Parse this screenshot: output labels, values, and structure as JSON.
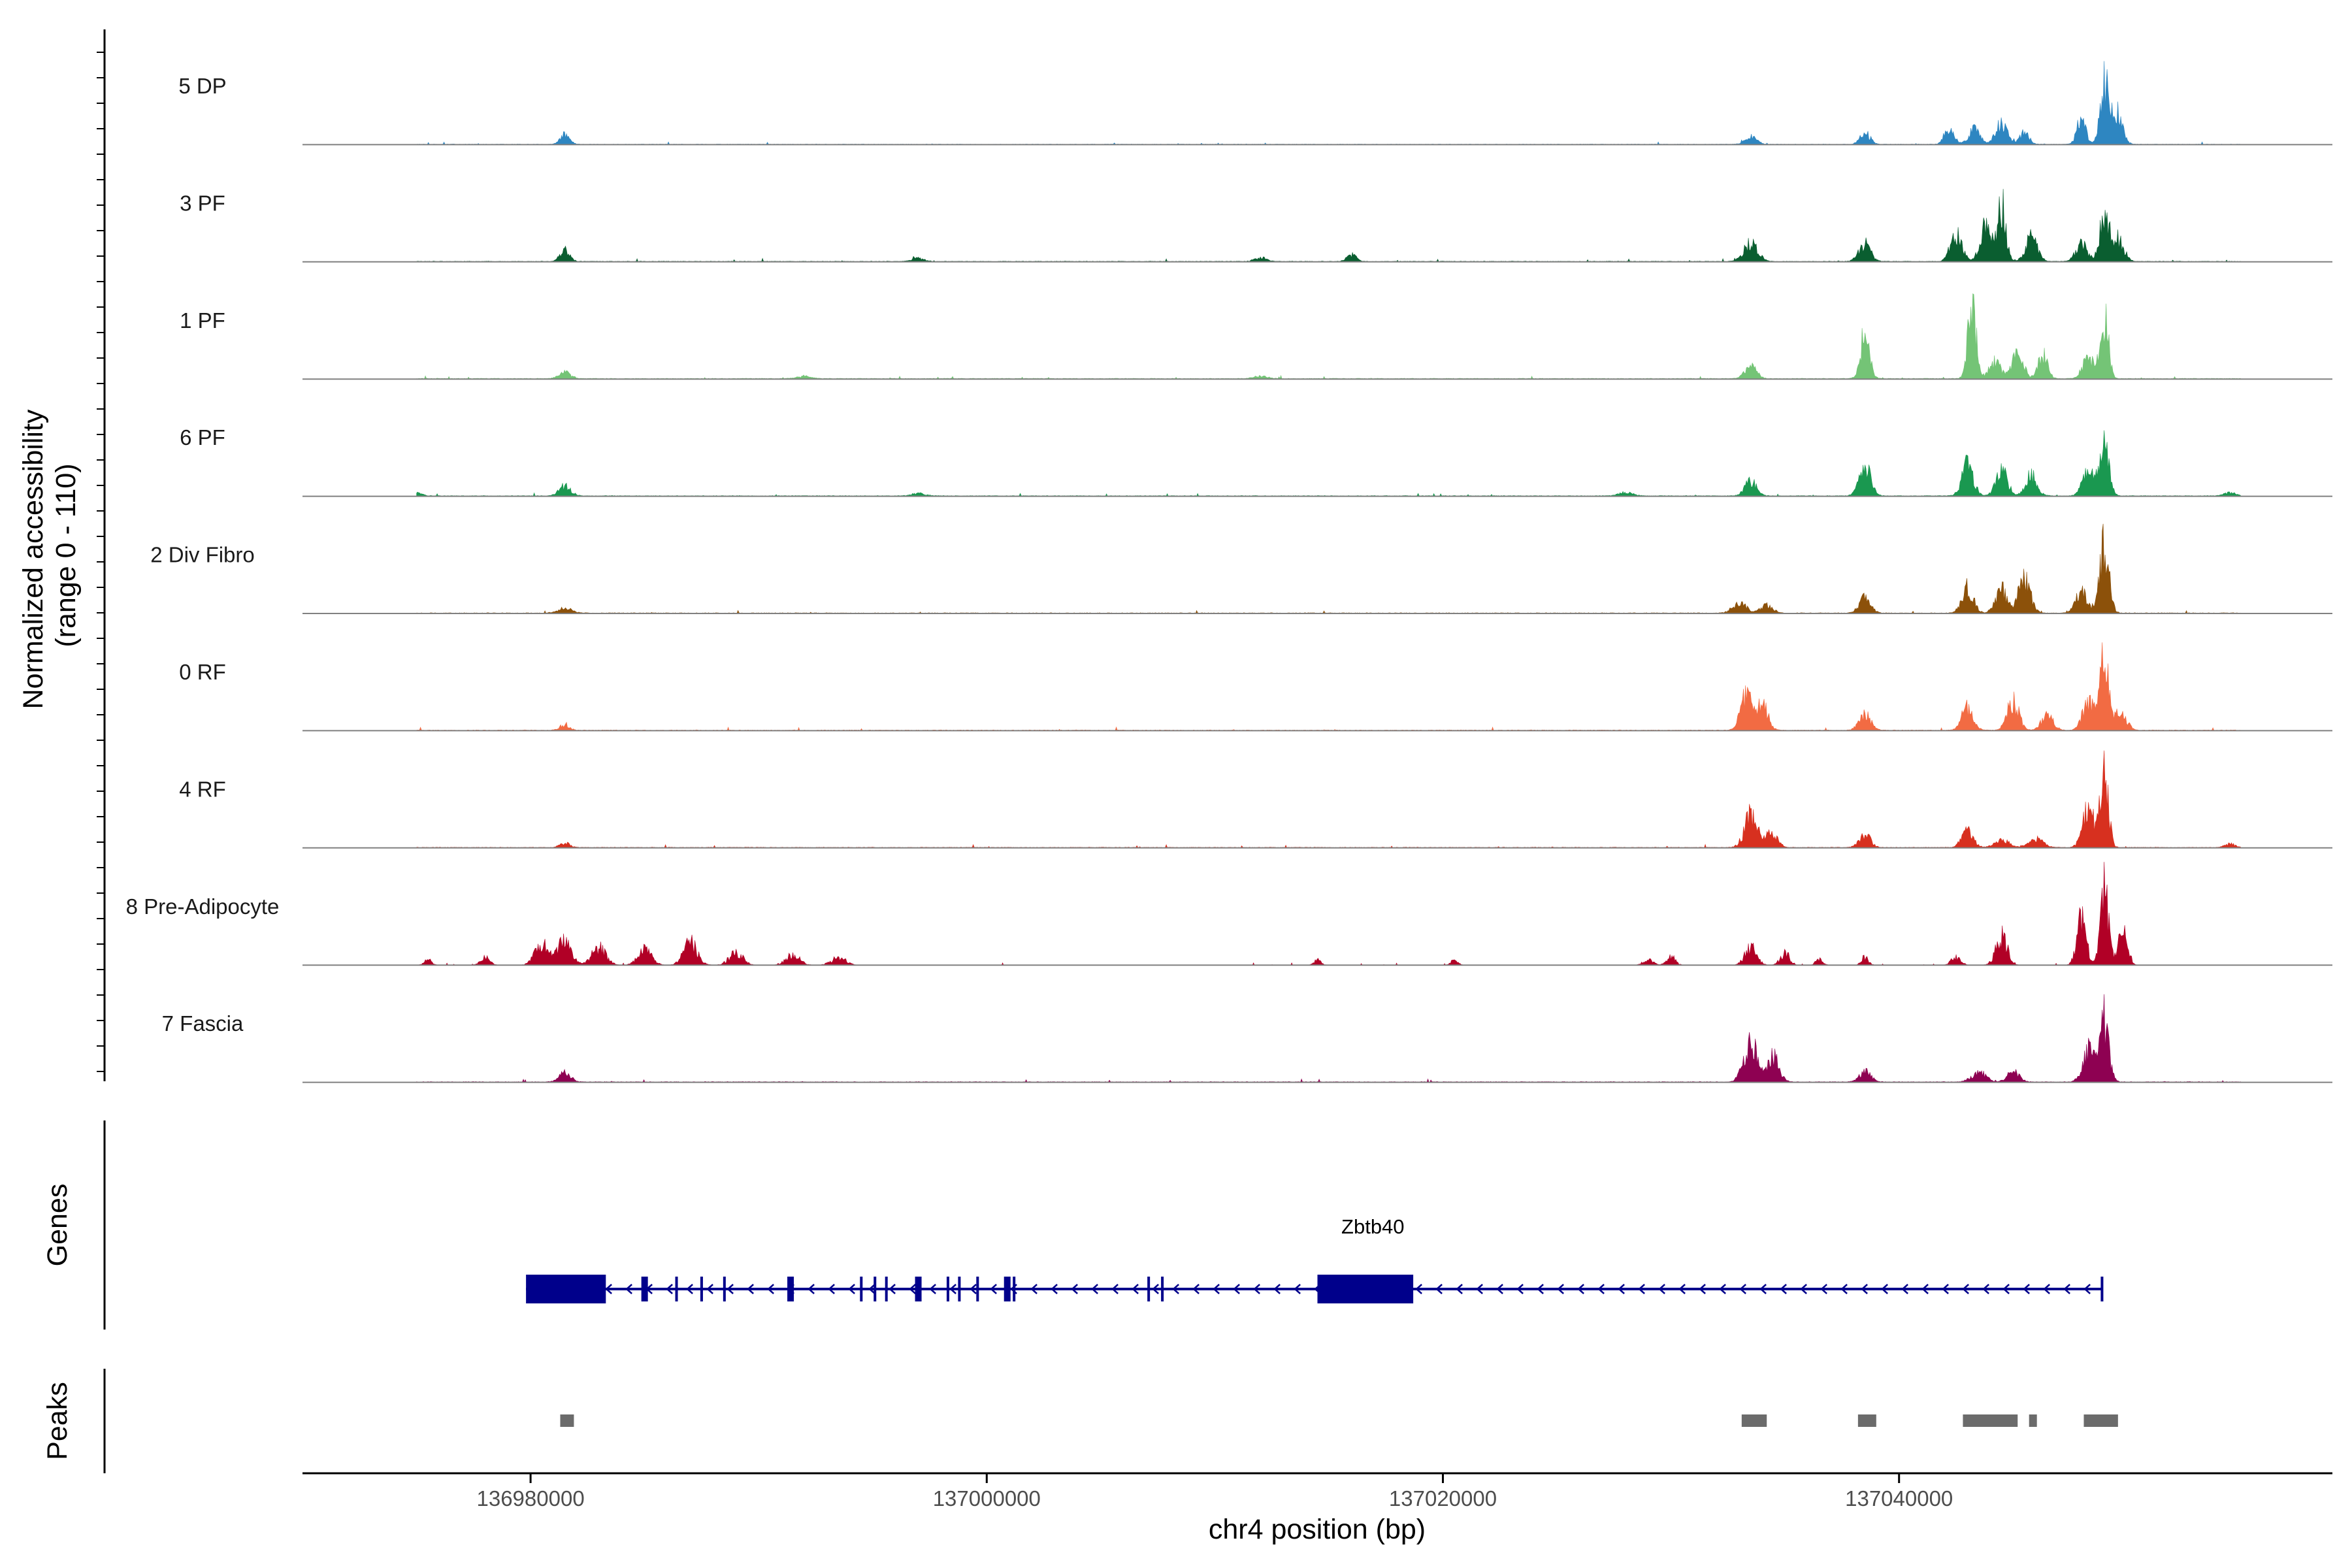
{
  "chart_data": {
    "type": "area",
    "title": "",
    "xlabel": "chr4 position (bp)",
    "ylabel": "Normalized accessibility\n(range 0 - 110)",
    "y_range": [
      0,
      110
    ],
    "xlim": [
      136970000,
      137059000
    ],
    "x_ticks": [
      136980000,
      137000000,
      137020000,
      137040000
    ],
    "x_tick_labels": [
      "136980000",
      "137000000",
      "137020000",
      "137040000"
    ],
    "panel_labels": {
      "genes": "Genes",
      "peaks": "Peaks"
    },
    "data_extent": [
      136975000,
      137055000
    ],
    "tracks": [
      {
        "name": "5 DP",
        "color": "#2e86c1",
        "baseline": 0.4,
        "peaks": [
          [
            136981500,
            12,
            200
          ],
          [
            137033500,
            9,
            250
          ],
          [
            137038500,
            14,
            220
          ],
          [
            137042200,
            22,
            200
          ],
          [
            137043300,
            18,
            250
          ],
          [
            137044500,
            25,
            250
          ],
          [
            137045500,
            14,
            200
          ],
          [
            137048000,
            30,
            200
          ],
          [
            137049000,
            70,
            180
          ],
          [
            137049500,
            40,
            250
          ]
        ]
      },
      {
        "name": "3 PF",
        "color": "#0a5e30",
        "baseline": 0.5,
        "peaks": [
          [
            136981500,
            15,
            200
          ],
          [
            136997000,
            4,
            250
          ],
          [
            137012000,
            5,
            250
          ],
          [
            137016000,
            8,
            200
          ],
          [
            137033500,
            22,
            300
          ],
          [
            137038500,
            22,
            250
          ],
          [
            137042500,
            32,
            250
          ],
          [
            137043800,
            40,
            250
          ],
          [
            137044500,
            70,
            180
          ],
          [
            137045800,
            30,
            250
          ],
          [
            137048000,
            22,
            250
          ],
          [
            137049000,
            55,
            200
          ],
          [
            137049600,
            28,
            250
          ]
        ]
      },
      {
        "name": "1 PF",
        "color": "#74c476",
        "baseline": 0.5,
        "peaks": [
          [
            136981500,
            8,
            250
          ],
          [
            136992000,
            3,
            300
          ],
          [
            137012000,
            3,
            300
          ],
          [
            137033500,
            14,
            250
          ],
          [
            137038500,
            55,
            200
          ],
          [
            137043200,
            85,
            180
          ],
          [
            137044200,
            20,
            250
          ],
          [
            137045200,
            30,
            250
          ],
          [
            137046300,
            28,
            200
          ],
          [
            137048300,
            25,
            250
          ],
          [
            137049000,
            75,
            180
          ]
        ]
      },
      {
        "name": "6 PF",
        "color": "#1a9850",
        "baseline": 0.5,
        "peaks": [
          [
            136975000,
            4,
            200
          ],
          [
            136981500,
            12,
            250
          ],
          [
            136997000,
            3,
            300
          ],
          [
            137028000,
            4,
            300
          ],
          [
            137033500,
            18,
            250
          ],
          [
            137038500,
            35,
            250
          ],
          [
            137043000,
            38,
            250
          ],
          [
            137044500,
            30,
            250
          ],
          [
            137045800,
            25,
            250
          ],
          [
            137048300,
            30,
            250
          ],
          [
            137049000,
            60,
            200
          ],
          [
            137054500,
            4,
            250
          ]
        ]
      },
      {
        "name": "2 Div Fibro",
        "color": "#8c510a",
        "baseline": 0.5,
        "peaks": [
          [
            136981500,
            6,
            300
          ],
          [
            137033000,
            12,
            300
          ],
          [
            137034200,
            10,
            250
          ],
          [
            137038500,
            18,
            250
          ],
          [
            137043000,
            30,
            250
          ],
          [
            137044500,
            28,
            250
          ],
          [
            137045500,
            40,
            250
          ],
          [
            137048000,
            25,
            250
          ],
          [
            137049000,
            80,
            200
          ]
        ]
      },
      {
        "name": "0 RF",
        "color": "#f26b43",
        "baseline": 0.5,
        "peaks": [
          [
            136981500,
            7,
            200
          ],
          [
            137033300,
            40,
            250
          ],
          [
            137034000,
            30,
            250
          ],
          [
            137038500,
            20,
            250
          ],
          [
            137043000,
            28,
            250
          ],
          [
            137045000,
            35,
            250
          ],
          [
            137046500,
            18,
            250
          ],
          [
            137048300,
            35,
            250
          ],
          [
            137049000,
            85,
            180
          ],
          [
            137049700,
            25,
            250
          ]
        ]
      },
      {
        "name": "4 RF",
        "color": "#d7301f",
        "baseline": 0.5,
        "peaks": [
          [
            136981500,
            6,
            200
          ],
          [
            137033500,
            38,
            280
          ],
          [
            137034400,
            18,
            250
          ],
          [
            137038500,
            15,
            250
          ],
          [
            137043000,
            20,
            250
          ],
          [
            137044500,
            10,
            300
          ],
          [
            137046000,
            10,
            300
          ],
          [
            137048300,
            45,
            250
          ],
          [
            137049000,
            90,
            180
          ],
          [
            137054500,
            4,
            250
          ]
        ]
      },
      {
        "name": "8 Pre-Adipocyte",
        "color": "#b10026",
        "baseline": 0.0,
        "peaks": [
          [
            136975500,
            8,
            150
          ],
          [
            136978000,
            10,
            200
          ],
          [
            136980500,
            25,
            300
          ],
          [
            136981500,
            30,
            300
          ],
          [
            136983000,
            22,
            300
          ],
          [
            136985000,
            18,
            300
          ],
          [
            136987000,
            28,
            300
          ],
          [
            136989000,
            15,
            300
          ],
          [
            136991500,
            12,
            300
          ],
          [
            136993500,
            10,
            300
          ],
          [
            137014500,
            6,
            150
          ],
          [
            137020500,
            6,
            150
          ],
          [
            137029000,
            8,
            200
          ],
          [
            137030000,
            10,
            200
          ],
          [
            137033500,
            22,
            250
          ],
          [
            137035000,
            15,
            200
          ],
          [
            137036500,
            8,
            150
          ],
          [
            137038500,
            10,
            150
          ],
          [
            137042500,
            10,
            200
          ],
          [
            137044500,
            35,
            250
          ],
          [
            137048000,
            60,
            200
          ],
          [
            137049000,
            90,
            180
          ],
          [
            137049800,
            40,
            200
          ]
        ]
      },
      {
        "name": "7 Fascia",
        "color": "#8e0152",
        "baseline": 0.5,
        "peaks": [
          [
            136981500,
            12,
            250
          ],
          [
            137033500,
            45,
            300
          ],
          [
            137034500,
            30,
            250
          ],
          [
            137038500,
            12,
            250
          ],
          [
            137043500,
            12,
            300
          ],
          [
            137045000,
            14,
            250
          ],
          [
            137048300,
            40,
            250
          ],
          [
            137049000,
            75,
            200
          ]
        ]
      }
    ],
    "gene": {
      "name": "Zbtb40",
      "start": 136979800,
      "end": 137048900,
      "strand": "-",
      "color": "#00008b",
      "thick_exons": [
        [
          136979800,
          136983300
        ],
        [
          137014500,
          137018700
        ]
      ],
      "small_exons": [
        136985000,
        136986400,
        136987500,
        136988500,
        136991400,
        136994500,
        136995100,
        136995600,
        136997000,
        136998300,
        136998800,
        136999600,
        137000900,
        137001200,
        137007100,
        137007700
      ]
    },
    "peak_regions": [
      [
        136981300,
        136981900
      ],
      [
        137033100,
        137034200
      ],
      [
        137038200,
        137039000
      ],
      [
        137042800,
        137045200
      ],
      [
        137045700,
        137046000
      ],
      [
        137048100,
        137049600
      ]
    ]
  }
}
